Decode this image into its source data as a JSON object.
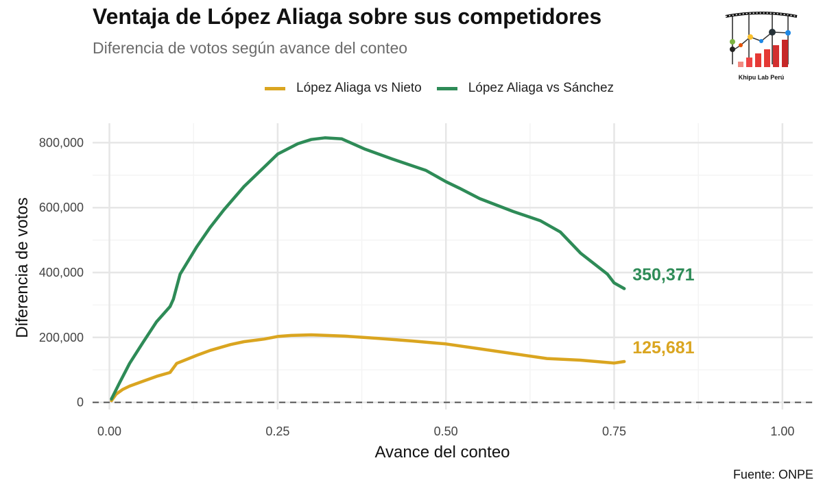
{
  "chart_data": {
    "type": "line",
    "title": "Ventaja de López Aliaga sobre sus competidores",
    "subtitle": "Diferencia de votos según avance del conteo",
    "xlabel": "Avance del conteo",
    "ylabel": "Diferencia de votos",
    "xlim": [
      -0.025,
      1.045
    ],
    "ylim": [
      -22000,
      860000
    ],
    "x_ticks": [
      0,
      0.25,
      0.5,
      0.75,
      1.0
    ],
    "x_tick_labels": [
      "0.00",
      "0.25",
      "0.50",
      "0.75",
      "1.00"
    ],
    "y_ticks": [
      0,
      200000,
      400000,
      600000,
      800000
    ],
    "y_tick_labels": [
      "0",
      "200,000",
      "400,000",
      "600,000",
      "800,000"
    ],
    "grid": true,
    "legend_position": "top",
    "reference_line": {
      "y": 0,
      "style": "dashed"
    },
    "source": "Fuente: ONPE",
    "series": [
      {
        "name": "López Aliaga vs Nieto",
        "color": "#DAA520",
        "end_label": "125,681",
        "x": [
          0.003,
          0.01,
          0.02,
          0.03,
          0.05,
          0.07,
          0.09,
          0.1,
          0.13,
          0.15,
          0.18,
          0.2,
          0.23,
          0.25,
          0.27,
          0.3,
          0.35,
          0.4,
          0.45,
          0.5,
          0.55,
          0.6,
          0.65,
          0.7,
          0.75,
          0.765
        ],
        "y": [
          5000,
          25000,
          40000,
          50000,
          65000,
          80000,
          92000,
          120000,
          145000,
          160000,
          178000,
          187000,
          195000,
          203000,
          206000,
          208000,
          204000,
          197000,
          189000,
          180000,
          165000,
          150000,
          135000,
          130000,
          121000,
          125681
        ]
      },
      {
        "name": "López Aliaga vs Sánchez",
        "color": "#2E8B57",
        "end_label": "350,371",
        "x": [
          0.003,
          0.015,
          0.03,
          0.05,
          0.07,
          0.09,
          0.095,
          0.105,
          0.13,
          0.15,
          0.17,
          0.2,
          0.22,
          0.25,
          0.28,
          0.3,
          0.32,
          0.345,
          0.38,
          0.42,
          0.47,
          0.5,
          0.52,
          0.55,
          0.6,
          0.64,
          0.67,
          0.7,
          0.74,
          0.75,
          0.765
        ],
        "y": [
          10000,
          60000,
          120000,
          185000,
          248000,
          295000,
          318000,
          395000,
          480000,
          540000,
          593000,
          665000,
          705000,
          765000,
          797000,
          810000,
          815000,
          812000,
          780000,
          750000,
          715000,
          680000,
          660000,
          628000,
          588000,
          560000,
          525000,
          460000,
          395000,
          368000,
          350371
        ]
      }
    ]
  },
  "logo": {
    "text": "Khipu Lab Perú"
  }
}
